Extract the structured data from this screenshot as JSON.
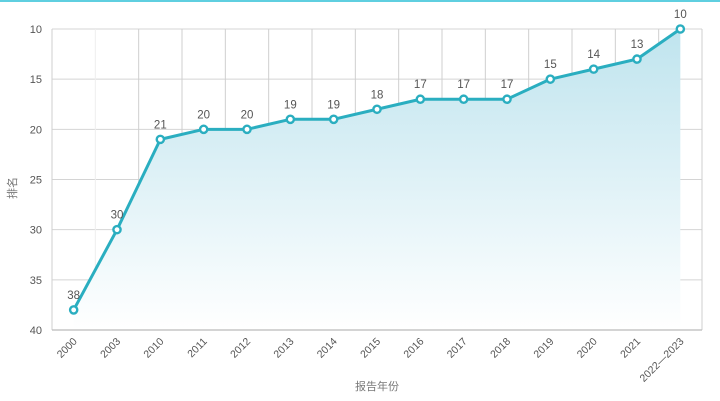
{
  "chart_data": {
    "type": "line",
    "xlabel": "报告年份",
    "ylabel": "排名",
    "categories": [
      "2000",
      "2003",
      "2010",
      "2011",
      "2012",
      "2013",
      "2014",
      "2015",
      "2016",
      "2017",
      "2018",
      "2019",
      "2020",
      "2021",
      "2022—2023"
    ],
    "values": [
      38,
      30,
      21,
      20,
      20,
      19,
      19,
      18,
      17,
      17,
      17,
      15,
      14,
      13,
      10
    ],
    "ylim": [
      10,
      40
    ],
    "y_inverted": true,
    "yticks": [
      10,
      15,
      20,
      25,
      30,
      35,
      40
    ],
    "grid": true,
    "area_fill": true,
    "colors": {
      "line": "#2aaec0",
      "fill_top": "#bfe4ee",
      "fill_bottom": "#ffffff",
      "accent_bar": "#5fcfe0"
    }
  }
}
